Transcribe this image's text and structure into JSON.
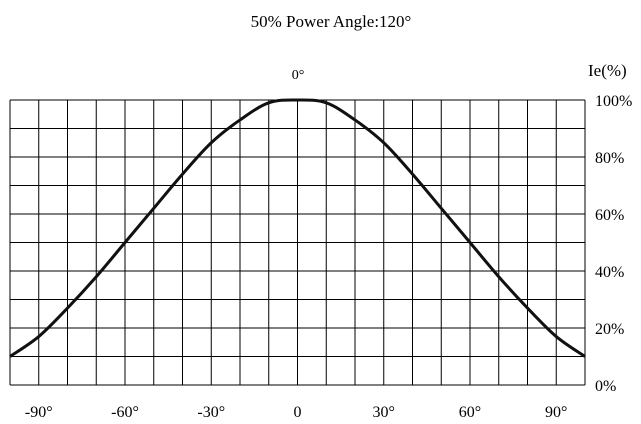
{
  "chart_data": {
    "type": "line",
    "title": "50% Power Angle:120°",
    "ylabel": "Ie(%)",
    "top_label": "0°",
    "x_ticks": [
      {
        "value": -90,
        "label": "-90°"
      },
      {
        "value": -60,
        "label": "-60°"
      },
      {
        "value": -30,
        "label": "-30°"
      },
      {
        "value": 0,
        "label": "0"
      },
      {
        "value": 30,
        "label": "30°"
      },
      {
        "value": 60,
        "label": "60°"
      },
      {
        "value": 90,
        "label": "90°"
      }
    ],
    "y_ticks": [
      {
        "value": 0,
        "label": "0%"
      },
      {
        "value": 20,
        "label": "20%"
      },
      {
        "value": 40,
        "label": "40%"
      },
      {
        "value": 60,
        "label": "60%"
      },
      {
        "value": 80,
        "label": "80%"
      },
      {
        "value": 100,
        "label": "100%"
      }
    ],
    "xlim": [
      -100,
      100
    ],
    "ylim": [
      0,
      100
    ],
    "grid": true,
    "series": [
      {
        "color": "#111111",
        "x": [
          -100,
          -90,
          -80,
          -70,
          -60,
          -50,
          -40,
          -30,
          -20,
          -10,
          0,
          10,
          20,
          30,
          40,
          50,
          60,
          70,
          80,
          90,
          100
        ],
        "y": [
          10,
          17,
          27,
          38,
          50,
          62,
          74,
          85,
          93,
          99,
          100,
          99,
          93,
          85,
          74,
          62,
          50,
          38,
          27,
          17,
          10
        ]
      }
    ]
  }
}
